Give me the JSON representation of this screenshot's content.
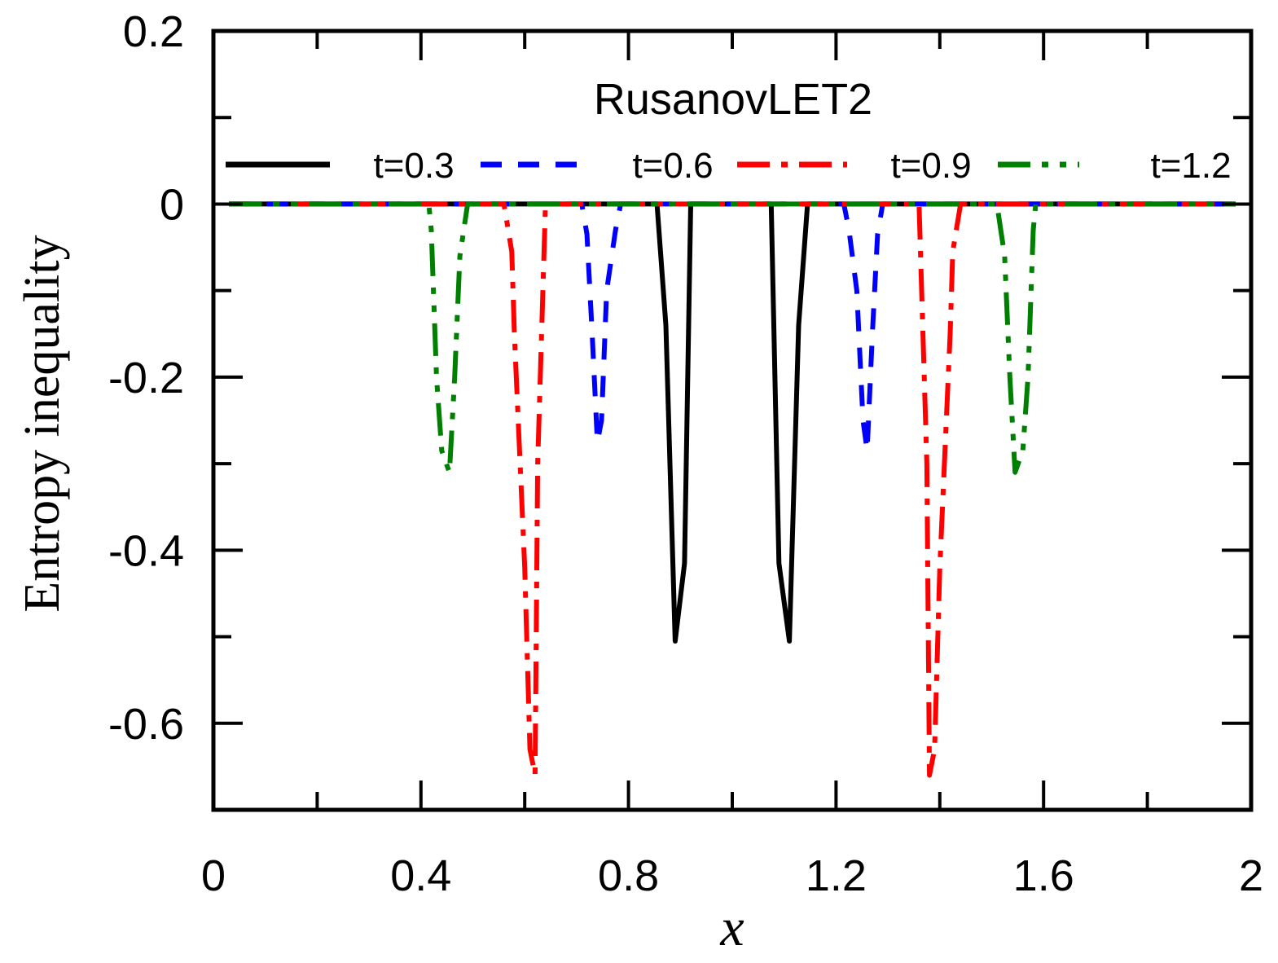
{
  "chart_data": {
    "type": "line",
    "title": "RusanovLET2",
    "xlabel": "x",
    "ylabel": "Entropy inequality",
    "xlim": [
      0,
      2
    ],
    "ylim": [
      -0.7,
      0.2
    ],
    "xticks": [
      0,
      0.4,
      0.8,
      1.2,
      1.6,
      2
    ],
    "xtick_labels": [
      "0",
      "0.4",
      "0.8",
      "1.2",
      "1.6",
      "2"
    ],
    "yticks": [
      0.2,
      0,
      -0.2,
      -0.4,
      -0.6
    ],
    "ytick_labels": [
      "0.2",
      "0",
      "-0.2",
      "-0.4",
      "-0.6"
    ],
    "grid": false,
    "legend_position": "top",
    "series": [
      {
        "name": "t=0.3",
        "color": "#000000",
        "style": "solid",
        "points": [
          [
            0.03,
            0
          ],
          [
            0.855,
            0
          ],
          [
            0.872,
            -0.14
          ],
          [
            0.89,
            -0.505
          ],
          [
            0.908,
            -0.415
          ],
          [
            0.92,
            0
          ],
          [
            1.075,
            0
          ],
          [
            1.09,
            -0.415
          ],
          [
            1.11,
            -0.505
          ],
          [
            1.128,
            -0.14
          ],
          [
            1.145,
            0
          ],
          [
            1.97,
            0
          ]
        ]
      },
      {
        "name": "t=0.6",
        "color": "#0000ff",
        "style": "dash",
        "points": [
          [
            0.03,
            0
          ],
          [
            0.71,
            0
          ],
          [
            0.72,
            -0.035
          ],
          [
            0.73,
            -0.15
          ],
          [
            0.74,
            -0.275
          ],
          [
            0.748,
            -0.25
          ],
          [
            0.758,
            -0.1
          ],
          [
            0.775,
            -0.03
          ],
          [
            0.785,
            0
          ],
          [
            1.215,
            0
          ],
          [
            1.225,
            -0.03
          ],
          [
            1.24,
            -0.1
          ],
          [
            1.252,
            -0.25
          ],
          [
            1.26,
            -0.285
          ],
          [
            1.27,
            -0.15
          ],
          [
            1.28,
            -0.035
          ],
          [
            1.29,
            0
          ],
          [
            1.97,
            0
          ]
        ]
      },
      {
        "name": "t=0.9",
        "color": "#ff0000",
        "style": "dashdot",
        "points": [
          [
            0.03,
            0
          ],
          [
            0.56,
            0
          ],
          [
            0.575,
            -0.055
          ],
          [
            0.58,
            -0.15
          ],
          [
            0.6,
            -0.42
          ],
          [
            0.61,
            -0.63
          ],
          [
            0.62,
            -0.66
          ],
          [
            0.625,
            -0.3
          ],
          [
            0.64,
            0
          ],
          [
            1.36,
            0
          ],
          [
            1.375,
            -0.3
          ],
          [
            1.38,
            -0.66
          ],
          [
            1.39,
            -0.63
          ],
          [
            1.4,
            -0.42
          ],
          [
            1.42,
            -0.15
          ],
          [
            1.425,
            -0.055
          ],
          [
            1.44,
            0
          ],
          [
            1.97,
            0
          ]
        ]
      },
      {
        "name": "t=1.2",
        "color": "#008000",
        "style": "dashdotdot",
        "points": [
          [
            0.03,
            0
          ],
          [
            0.415,
            0
          ],
          [
            0.42,
            -0.03
          ],
          [
            0.43,
            -0.2
          ],
          [
            0.44,
            -0.285
          ],
          [
            0.455,
            -0.31
          ],
          [
            0.465,
            -0.2
          ],
          [
            0.475,
            -0.06
          ],
          [
            0.49,
            0
          ],
          [
            1.51,
            0
          ],
          [
            1.525,
            -0.06
          ],
          [
            1.535,
            -0.2
          ],
          [
            1.545,
            -0.31
          ],
          [
            1.56,
            -0.285
          ],
          [
            1.57,
            -0.2
          ],
          [
            1.58,
            -0.03
          ],
          [
            1.585,
            0
          ],
          [
            1.97,
            0
          ]
        ]
      }
    ]
  }
}
